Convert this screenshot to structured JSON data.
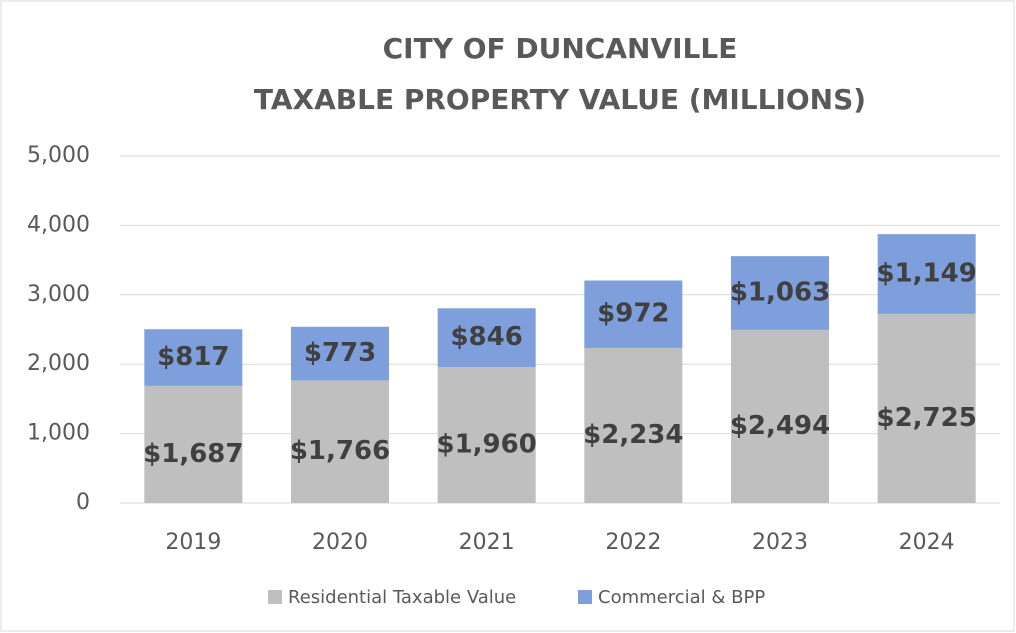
{
  "chart_data": {
    "type": "stacked_bar",
    "title": [
      "CITY OF DUNCANVILLE",
      "TAXABLE PROPERTY VALUE (MILLIONS)"
    ],
    "categories": [
      "2019",
      "2020",
      "2021",
      "2022",
      "2023",
      "2024"
    ],
    "series": [
      {
        "name": "Residential Taxable Value",
        "color": "#bfbfbf",
        "values": [
          1687,
          1766,
          1960,
          2234,
          2494,
          2725
        ],
        "value_labels": [
          "$1,687",
          "$1,766",
          "$1,960",
          "$2,234",
          "$2,494",
          "$2,725"
        ]
      },
      {
        "name": "Commercial & BPP",
        "color": "#7f9fdc",
        "values": [
          817,
          773,
          846,
          972,
          1063,
          1149
        ],
        "value_labels": [
          "$817",
          "$773",
          "$846",
          "$972",
          "$1,063",
          "$1,149"
        ]
      }
    ],
    "ylim": [
      0,
      5000
    ],
    "yticks": [
      0,
      {
        "value": 1000,
        "label": "1,000"
      },
      {
        "value": 2000,
        "label": "2,000"
      },
      {
        "value": 3000,
        "label": "3,000"
      },
      {
        "value": 4000,
        "label": "4,000"
      },
      {
        "value": 5000,
        "label": "5,000"
      }
    ],
    "grid": true,
    "legend": "bottom"
  }
}
